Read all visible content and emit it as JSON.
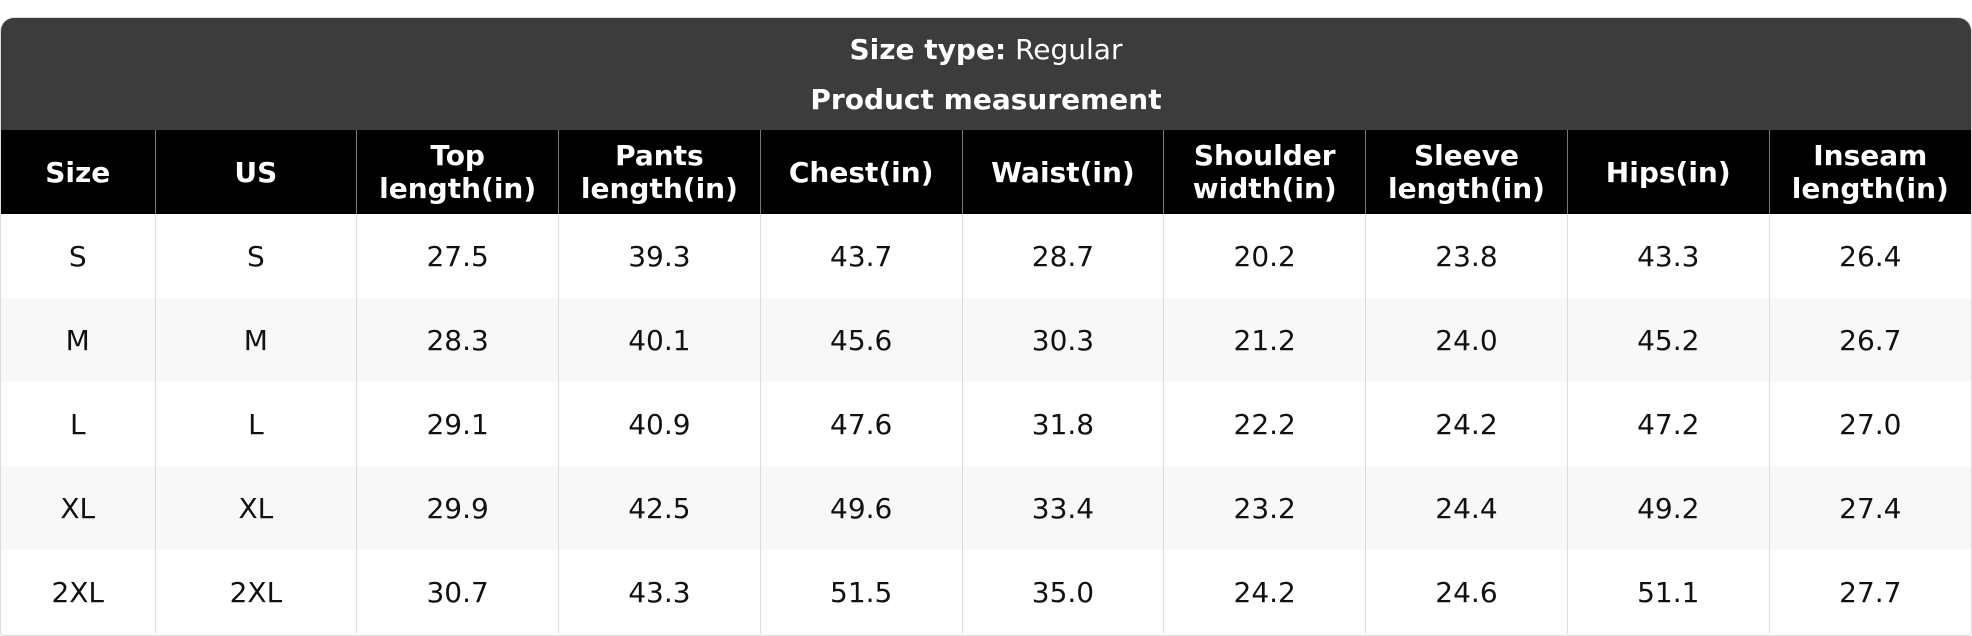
{
  "header": {
    "size_type_label": "Size type:",
    "size_type_value": "Regular",
    "subtitle": "Product measurement"
  },
  "table": {
    "columns": [
      "Size",
      "US",
      "Top length(in)",
      "Pants length(in)",
      "Chest(in)",
      "Waist(in)",
      "Shoulder width(in)",
      "Sleeve length(in)",
      "Hips(in)",
      "Inseam length(in)"
    ],
    "rows": [
      [
        "S",
        "S",
        "27.5",
        "39.3",
        "43.7",
        "28.7",
        "20.2",
        "23.8",
        "43.3",
        "26.4"
      ],
      [
        "M",
        "M",
        "28.3",
        "40.1",
        "45.6",
        "30.3",
        "21.2",
        "24.0",
        "45.2",
        "26.7"
      ],
      [
        "L",
        "L",
        "29.1",
        "40.9",
        "47.6",
        "31.8",
        "22.2",
        "24.2",
        "47.2",
        "27.0"
      ],
      [
        "XL",
        "XL",
        "29.9",
        "42.5",
        "49.6",
        "33.4",
        "23.2",
        "24.4",
        "49.2",
        "27.4"
      ],
      [
        "2XL",
        "2XL",
        "30.7",
        "43.3",
        "51.5",
        "35.0",
        "24.2",
        "24.6",
        "51.1",
        "27.7"
      ]
    ]
  }
}
